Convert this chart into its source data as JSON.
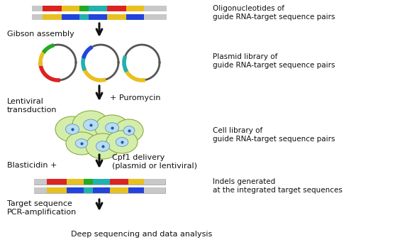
{
  "bg_color": "#ffffff",
  "fig_width": 5.57,
  "fig_height": 3.55,
  "dpi": 100,
  "labels": {
    "oligo_title": "Oligonucleotides of\nguide RNA-target sequence pairs",
    "gibson": "Gibson assembly",
    "plasmid_title": "Plasmid library of\nguide RNA-target sequence pairs",
    "lentiviral": "Lentiviral\ntransduction",
    "puromycin": "+ Puromycin",
    "cell_title": "Cell library of\nguide RNA-target sequence pairs",
    "blasticidin": "Blasticidin +",
    "cpf1": "Cpf1 delivery\n(plasmid or lentiviral)",
    "indels_title": "Indels generated\nat the integrated target sequences",
    "target_seq": "Target sequence\nPCR-amplification",
    "deep_seq": "Deep sequencing and data analysis"
  },
  "colors": {
    "gray": "#c8c8c8",
    "red": "#dd2222",
    "yellow": "#e8c020",
    "green_seg": "#22aa22",
    "blue": "#2244dd",
    "teal": "#22b0b0",
    "cell_green": "#d4eeaa",
    "cell_outline": "#88aa44",
    "plasmid_outline": "#555555",
    "arrow_color": "#111111",
    "text_color": "#111111"
  },
  "font_size": 7.5
}
